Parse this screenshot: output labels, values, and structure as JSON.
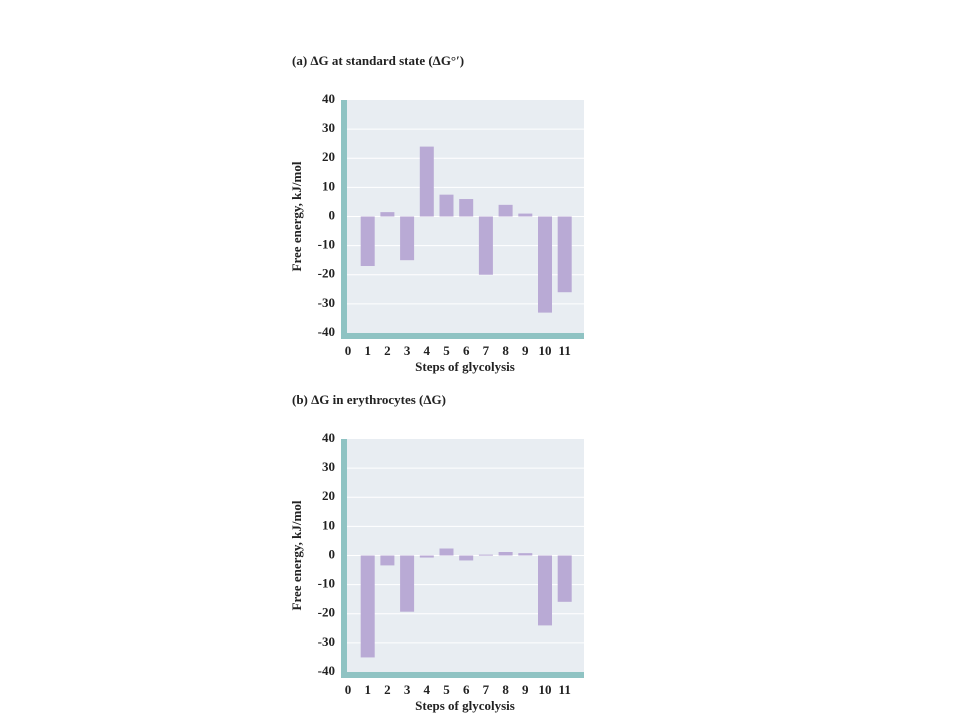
{
  "chart_data": [
    {
      "type": "bar",
      "title": "(a)  ΔG at standard state (ΔG°′)",
      "xlabel": "Steps of glycolysis",
      "ylabel": "Free energy, kJ/mol",
      "categories": [
        "0",
        "1",
        "2",
        "3",
        "4",
        "5",
        "6",
        "7",
        "8",
        "9",
        "10",
        "11"
      ],
      "values": [
        null,
        -17,
        1.5,
        -15,
        24,
        7.5,
        6,
        -20,
        4,
        1,
        -33,
        -26
      ],
      "color": "#b9aad5",
      "ylim": [
        -40,
        40
      ],
      "yticks": [
        -40,
        -30,
        -20,
        -10,
        0,
        10,
        20,
        30,
        40
      ],
      "grid": true
    },
    {
      "type": "bar",
      "title": "(b) ΔG in erythrocytes (ΔG)",
      "xlabel": "Steps of glycolysis",
      "ylabel": "Free energy, kJ/mol",
      "categories": [
        "0",
        "1",
        "2",
        "3",
        "4",
        "5",
        "6",
        "7",
        "8",
        "9",
        "10",
        "11"
      ],
      "values": [
        null,
        -35,
        -3.4,
        -19.3,
        -0.7,
        2.4,
        -1.7,
        0.3,
        1.2,
        0.8,
        -24,
        -15.9
      ],
      "color": "#b9aad5",
      "ylim": [
        -40,
        40
      ],
      "yticks": [
        -40,
        -30,
        -20,
        -10,
        0,
        10,
        20,
        30,
        40
      ],
      "grid": true
    }
  ]
}
